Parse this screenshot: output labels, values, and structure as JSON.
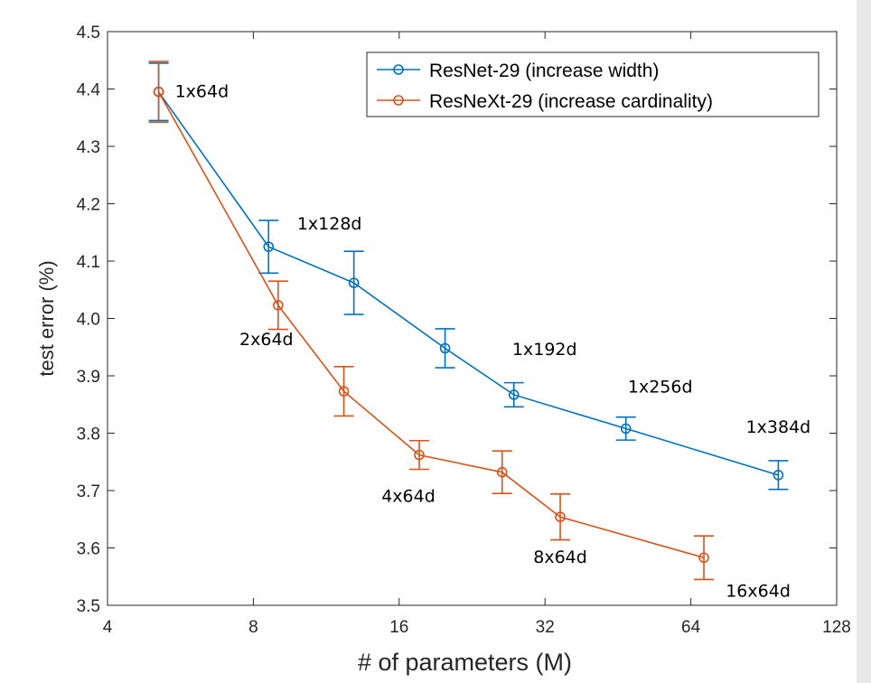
{
  "chart_data": {
    "type": "line",
    "xlabel": "# of parameters (M)",
    "ylabel": "test error (%)",
    "x_scale": "log2",
    "xlim": [
      4,
      128
    ],
    "ylim": [
      3.5,
      4.5
    ],
    "x_ticks": [
      "4",
      "8",
      "16",
      "32",
      "64",
      "128"
    ],
    "y_ticks": [
      "3.5",
      "3.6",
      "3.7",
      "3.8",
      "3.9",
      "4.0",
      "4.1",
      "4.2",
      "4.3",
      "4.4",
      "4.5"
    ],
    "grid": false,
    "legend_position": "top-right",
    "series": [
      {
        "name": "ResNet-29 (increase width)",
        "color": "#0072BD",
        "points": [
          {
            "x": 5.1,
            "y": 4.395,
            "err": 0.05
          },
          {
            "x": 8.6,
            "y": 4.125,
            "err": 0.046
          },
          {
            "x": 12.9,
            "y": 4.062,
            "err": 0.055
          },
          {
            "x": 19.9,
            "y": 3.948,
            "err": 0.034
          },
          {
            "x": 27.6,
            "y": 3.867,
            "err": 0.021
          },
          {
            "x": 47.0,
            "y": 3.808,
            "err": 0.02
          },
          {
            "x": 97.0,
            "y": 3.727,
            "err": 0.025
          }
        ]
      },
      {
        "name": "ResNeXt-29 (increase cardinality)",
        "color": "#D95319",
        "points": [
          {
            "x": 5.1,
            "y": 4.395,
            "err": 0.053
          },
          {
            "x": 9.0,
            "y": 4.023,
            "err": 0.042
          },
          {
            "x": 12.3,
            "y": 3.873,
            "err": 0.043
          },
          {
            "x": 17.6,
            "y": 3.762,
            "err": 0.025
          },
          {
            "x": 26.1,
            "y": 3.732,
            "err": 0.037
          },
          {
            "x": 34.4,
            "y": 3.654,
            "err": 0.04
          },
          {
            "x": 68.1,
            "y": 3.583,
            "err": 0.038
          }
        ]
      }
    ],
    "annotations": [
      {
        "text": "1x64d",
        "x": 5.1,
        "y": 4.395
      },
      {
        "text": "1x128d",
        "x": 12.9,
        "y": 4.062
      },
      {
        "text": "1x192d",
        "x": 27.6,
        "y": 3.867
      },
      {
        "text": "1x256d",
        "x": 47.0,
        "y": 3.808
      },
      {
        "text": "1x384d",
        "x": 97.0,
        "y": 3.727
      },
      {
        "text": "2x64d",
        "x": 9.0,
        "y": 4.023
      },
      {
        "text": "4x64d",
        "x": 17.6,
        "y": 3.762
      },
      {
        "text": "8x64d",
        "x": 34.4,
        "y": 3.654
      },
      {
        "text": "16x64d",
        "x": 68.1,
        "y": 3.583
      }
    ]
  }
}
